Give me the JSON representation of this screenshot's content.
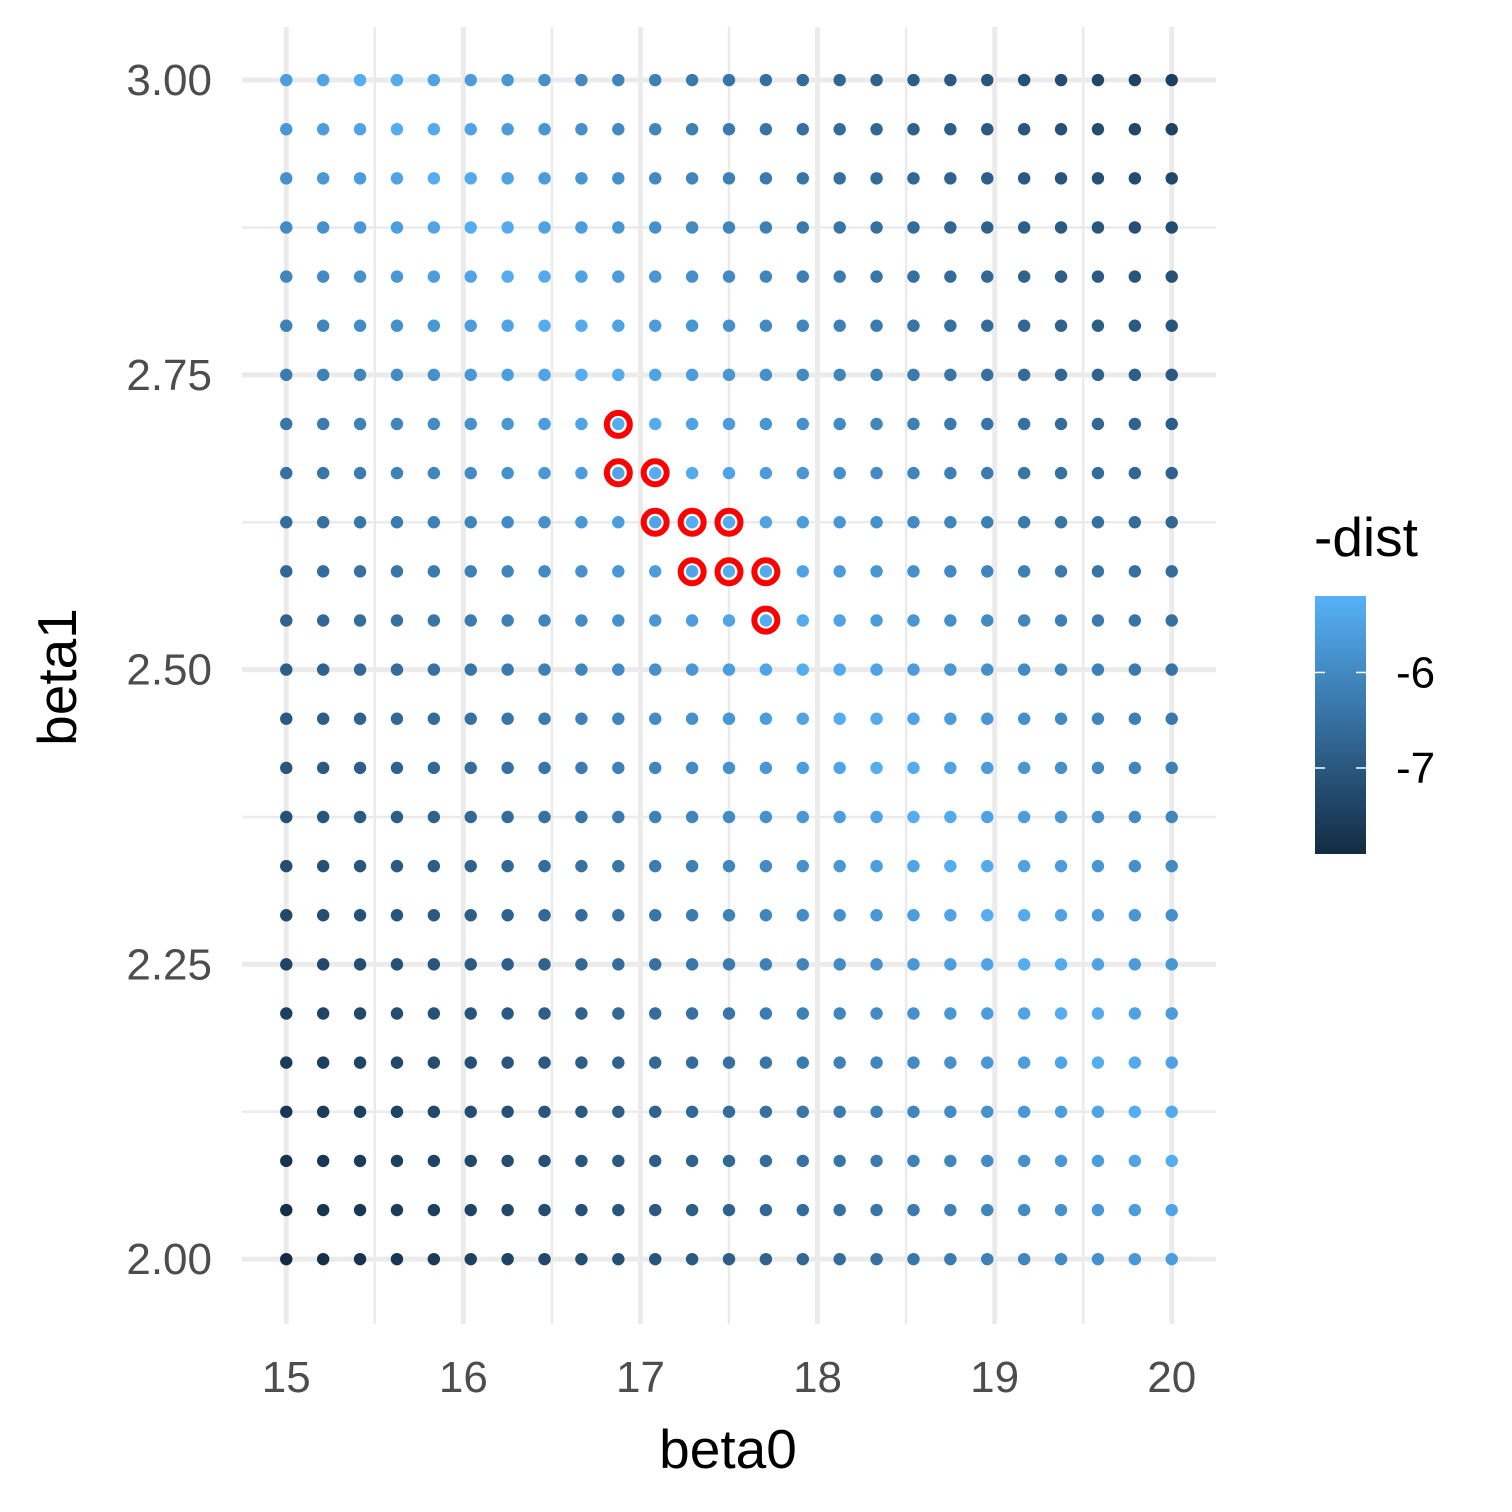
{
  "chart_data": {
    "type": "scatter",
    "title": "",
    "xlabel": "beta0",
    "ylabel": "beta1",
    "xlim": [
      14.75,
      20.25
    ],
    "ylim": [
      1.945,
      3.045
    ],
    "x_ticks": [
      15,
      16,
      17,
      18,
      19,
      20
    ],
    "x_tick_labels": [
      "15",
      "16",
      "17",
      "18",
      "19",
      "20"
    ],
    "y_ticks": [
      2.0,
      2.25,
      2.5,
      2.75,
      3.0
    ],
    "y_tick_labels": [
      "2.00",
      "2.25",
      "2.50",
      "2.75",
      "3.00"
    ],
    "grid": true,
    "grid_spec": {
      "beta0_start": 15,
      "beta0_end": 20,
      "beta0_count": 25,
      "beta1_start": 2.0,
      "beta1_end": 3.0,
      "beta1_count": 25
    },
    "color_variable": "-dist",
    "color_model": {
      "description": "-dist shade, lightest near ridge beta1 = 2.6 - 0.2*(beta0 - 17.5)",
      "ridge_intercept": 2.6,
      "ridge_slope": -0.2,
      "ridge_center_beta0": 17.5,
      "max_value": -5.2,
      "min_value": -7.9
    },
    "highlighted_points": [
      {
        "beta0": 16.875,
        "beta1": 2.708
      },
      {
        "beta0": 16.875,
        "beta1": 2.667
      },
      {
        "beta0": 17.083,
        "beta1": 2.667
      },
      {
        "beta0": 17.083,
        "beta1": 2.625
      },
      {
        "beta0": 17.292,
        "beta1": 2.625
      },
      {
        "beta0": 17.5,
        "beta1": 2.625
      },
      {
        "beta0": 17.292,
        "beta1": 2.583
      },
      {
        "beta0": 17.5,
        "beta1": 2.583
      },
      {
        "beta0": 17.708,
        "beta1": 2.583
      },
      {
        "beta0": 17.708,
        "beta1": 2.542
      }
    ],
    "legend": {
      "title": "-dist",
      "placement": "right",
      "labels": [
        "-6",
        "-7"
      ],
      "label_values": [
        -6,
        -7
      ],
      "range": [
        -7.9,
        -5.2
      ]
    },
    "colors": {
      "low": "#132B43",
      "high": "#56B1F7",
      "highlight": "#FF0000",
      "grid": "#EBEBEB"
    }
  }
}
